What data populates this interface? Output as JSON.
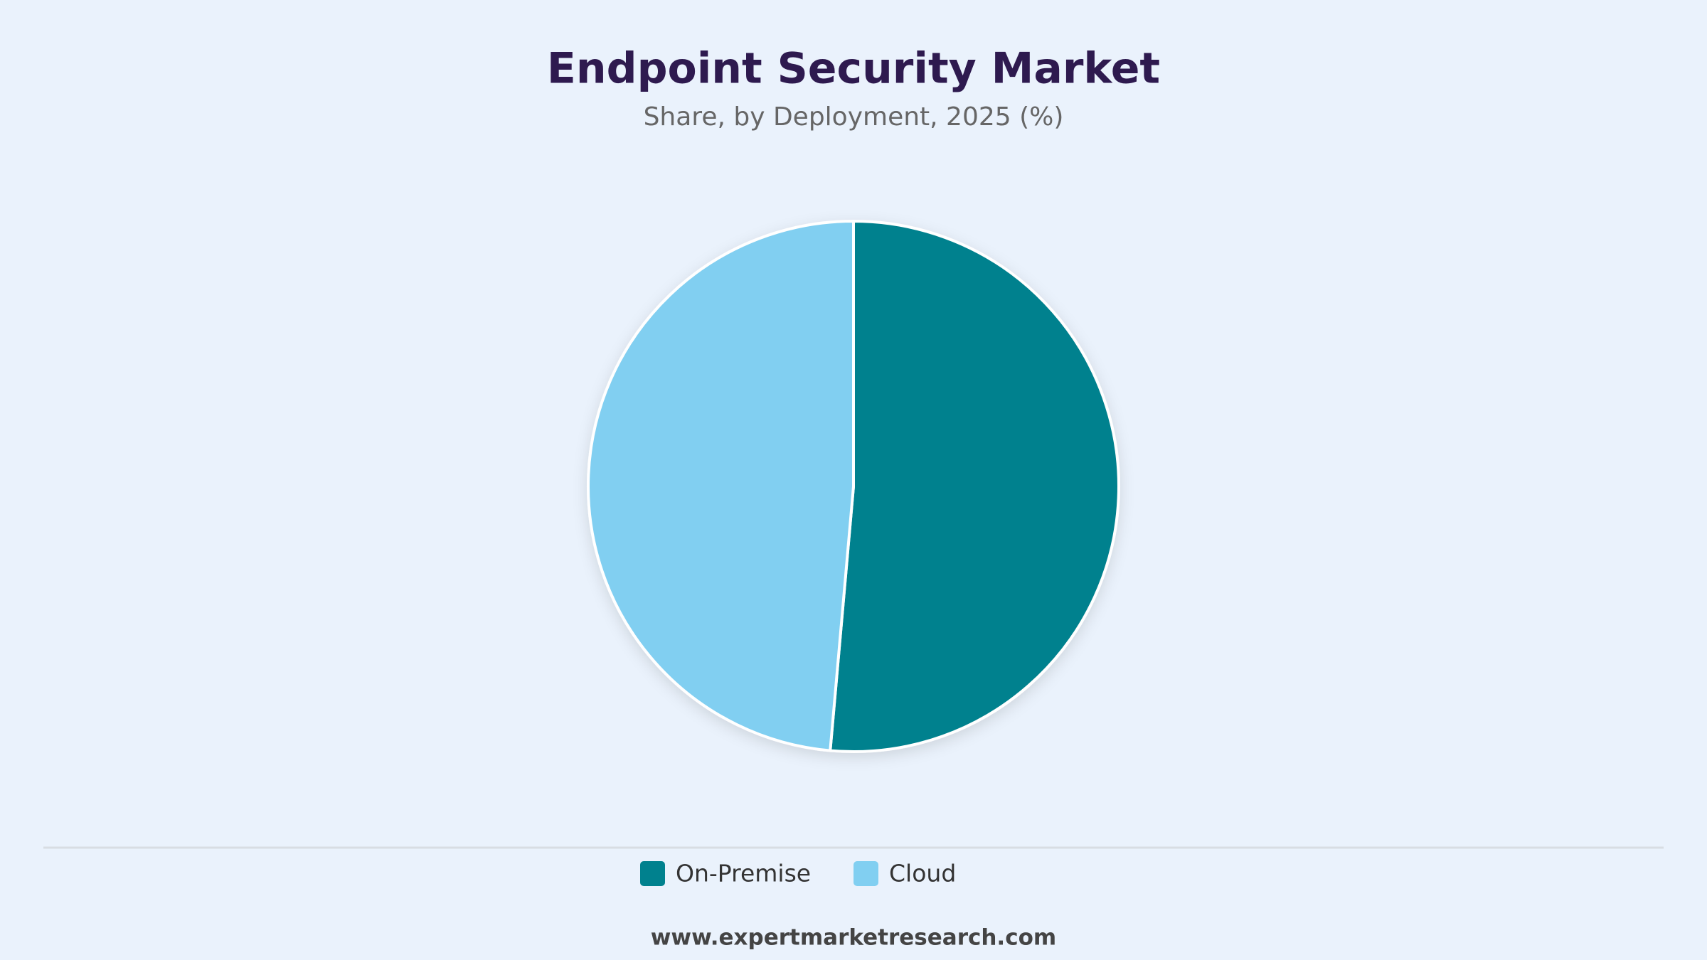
{
  "chart_data": {
    "type": "pie",
    "title": "Endpoint Security Market",
    "subtitle": "Share, by Deployment, 2025 (%)",
    "categories": [
      "On-Premise",
      "Cloud"
    ],
    "values": [
      51.4,
      48.6
    ],
    "colors": [
      "#00818e",
      "#81cff1"
    ],
    "legend": "bottom",
    "source": "www.expertmarketresearch.com"
  }
}
